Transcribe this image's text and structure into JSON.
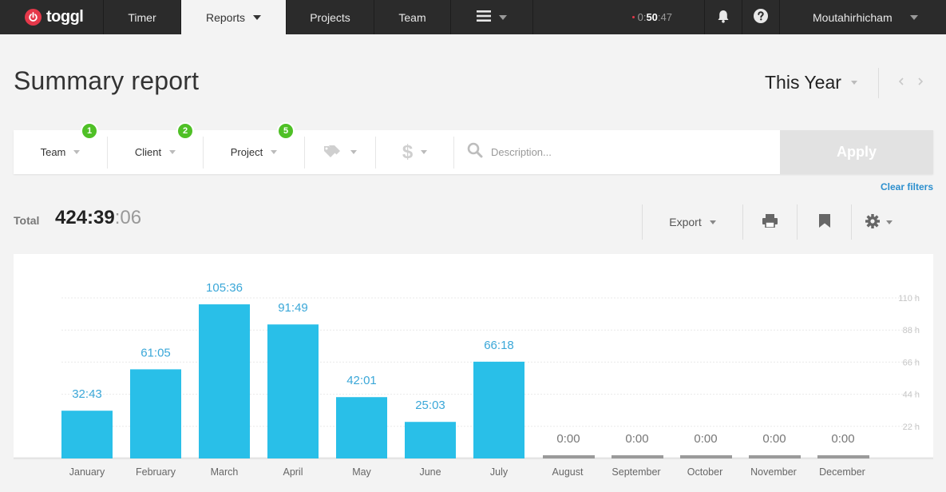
{
  "nav": {
    "logo": "toggl",
    "timer": "Timer",
    "reports": "Reports",
    "projects": "Projects",
    "team": "Team",
    "running_time_prefix": "0:",
    "running_time_bold": "50",
    "running_time_suffix": ":47",
    "username": "Moutahirhicham"
  },
  "header": {
    "title": "Summary report",
    "period": "This Year"
  },
  "filters": {
    "team": {
      "label": "Team",
      "count": "1"
    },
    "client": {
      "label": "Client",
      "count": "2"
    },
    "project": {
      "label": "Project",
      "count": "5"
    },
    "description_placeholder": "Description...",
    "apply": "Apply",
    "clear": "Clear filters"
  },
  "totals": {
    "label": "Total",
    "value_main": "424:39",
    "value_sec": ":06"
  },
  "actions": {
    "export": "Export"
  },
  "colors": {
    "bar": "#29bfe8",
    "bar_empty": "#9a9a9a",
    "label": "#3aa7d8",
    "brand": "#e5384a",
    "badge": "#4fc026"
  },
  "chart_data": {
    "type": "bar",
    "categories": [
      "January",
      "February",
      "March",
      "April",
      "May",
      "June",
      "July",
      "August",
      "September",
      "October",
      "November",
      "December"
    ],
    "values": [
      32.72,
      61.08,
      105.6,
      91.82,
      42.02,
      25.05,
      66.3,
      0,
      0,
      0,
      0,
      0
    ],
    "data_labels": [
      "32:43",
      "61:05",
      "105:36",
      "91:49",
      "42:01",
      "25:03",
      "66:18",
      "0:00",
      "0:00",
      "0:00",
      "0:00",
      "0:00"
    ],
    "yticks": [
      "22 h",
      "44 h",
      "66 h",
      "88 h",
      "110 h"
    ],
    "ytick_values": [
      22,
      44,
      66,
      88,
      110
    ],
    "ylim": [
      0,
      110
    ],
    "grid": true
  }
}
